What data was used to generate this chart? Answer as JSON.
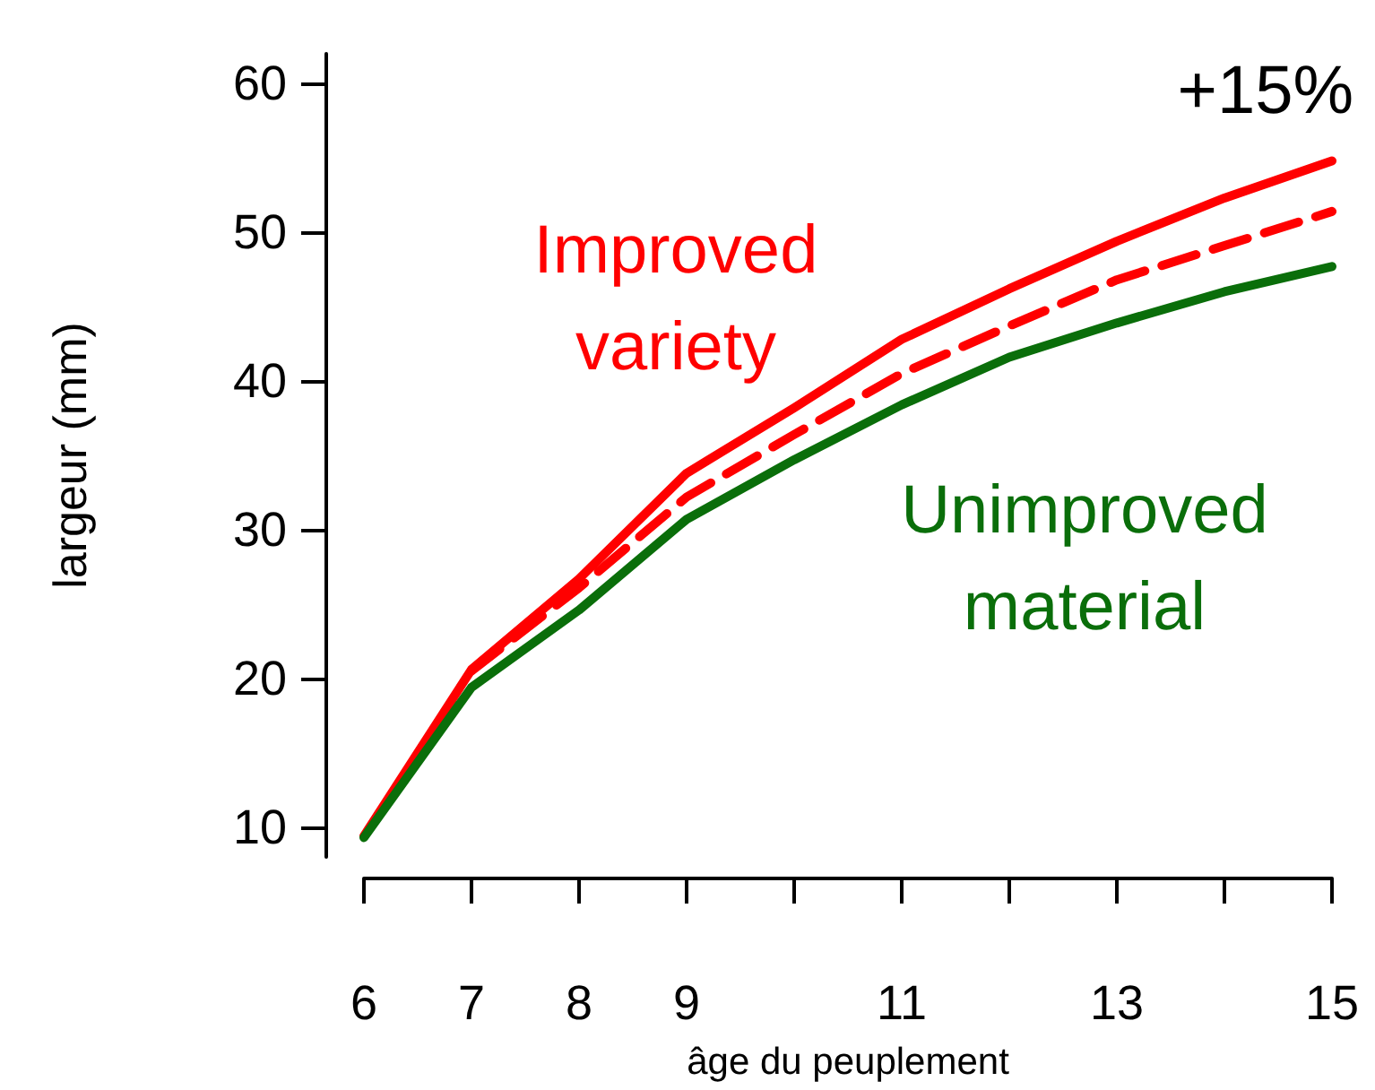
{
  "chart_data": {
    "type": "line",
    "xlabel": "âge du peuplement",
    "ylabel": "largeur (mm)",
    "x": [
      6,
      7,
      8,
      9,
      10,
      11,
      12,
      13,
      14,
      15
    ],
    "series": [
      {
        "name": "Improved variety",
        "color": "#ff0000",
        "line_style": "solid",
        "values": [
          9.4,
          20.6,
          26.7,
          33.8,
          38.2,
          42.8,
          46.2,
          49.4,
          52.3,
          54.8
        ]
      },
      {
        "name": "Unimproved material",
        "color": "#0a6e0a",
        "line_style": "solid",
        "values": [
          9.3,
          19.4,
          24.6,
          30.7,
          34.7,
          38.4,
          41.6,
          43.9,
          46,
          47.7
        ]
      },
      {
        "color": "#ff0000",
        "line_style": "dashed",
        "x": [
          7,
          8,
          9,
          10,
          11,
          12,
          13,
          14,
          15
        ],
        "values": [
          20.5,
          26.1,
          32.2,
          36.4,
          40.5,
          43.7,
          46.8,
          49.1,
          51.4
        ]
      }
    ],
    "xlim": [
      6,
      15
    ],
    "xticks": [
      6,
      7,
      8,
      9,
      {
        "value": 10,
        "label": null
      },
      11,
      {
        "value": 12,
        "label": null
      },
      13,
      {
        "value": 14,
        "label": null
      },
      15
    ],
    "ylim": [
      8,
      62
    ],
    "yticks": [
      10,
      20,
      30,
      40,
      50,
      60
    ],
    "annotations": [
      "+15%"
    ],
    "grid": false,
    "marker": "none"
  }
}
